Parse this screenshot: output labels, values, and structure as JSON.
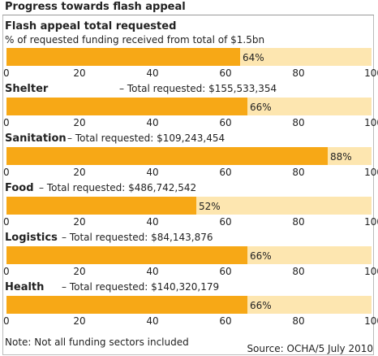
{
  "header": {
    "title": "Progress towards flash appeal"
  },
  "chart_data": {
    "type": "bar",
    "orientation": "horizontal",
    "xlim": [
      0,
      100
    ],
    "ticks": [
      "0",
      "20",
      "40",
      "60",
      "80",
      "100"
    ],
    "colors": {
      "funded": "#f7a816",
      "remaining": "#fde6b0"
    },
    "bars": [
      {
        "label": "Flash appeal total requested",
        "subtitle": "% of requested funding received from total of $1.5bn",
        "value": 64,
        "value_label": "64%"
      },
      {
        "label": "Shelter",
        "requested": "– Total requested: $155,533,354",
        "value": 66,
        "value_label": "66%"
      },
      {
        "label": "Sanitation",
        "requested": "– Total requested: $109,243,454",
        "value": 88,
        "value_label": "88%"
      },
      {
        "label": "Food",
        "requested": "– Total requested: $486,742,542",
        "value": 52,
        "value_label": "52%"
      },
      {
        "label": "Logistics",
        "requested": "– Total requested: $84,143,876",
        "value": 66,
        "value_label": "66%"
      },
      {
        "label": "Health",
        "requested": "– Total requested: $140,320,179",
        "value": 66,
        "value_label": "66%"
      }
    ]
  },
  "footer": {
    "note": "Note: Not all funding sectors included",
    "source": "Source: OCHA/5 July 2010"
  }
}
